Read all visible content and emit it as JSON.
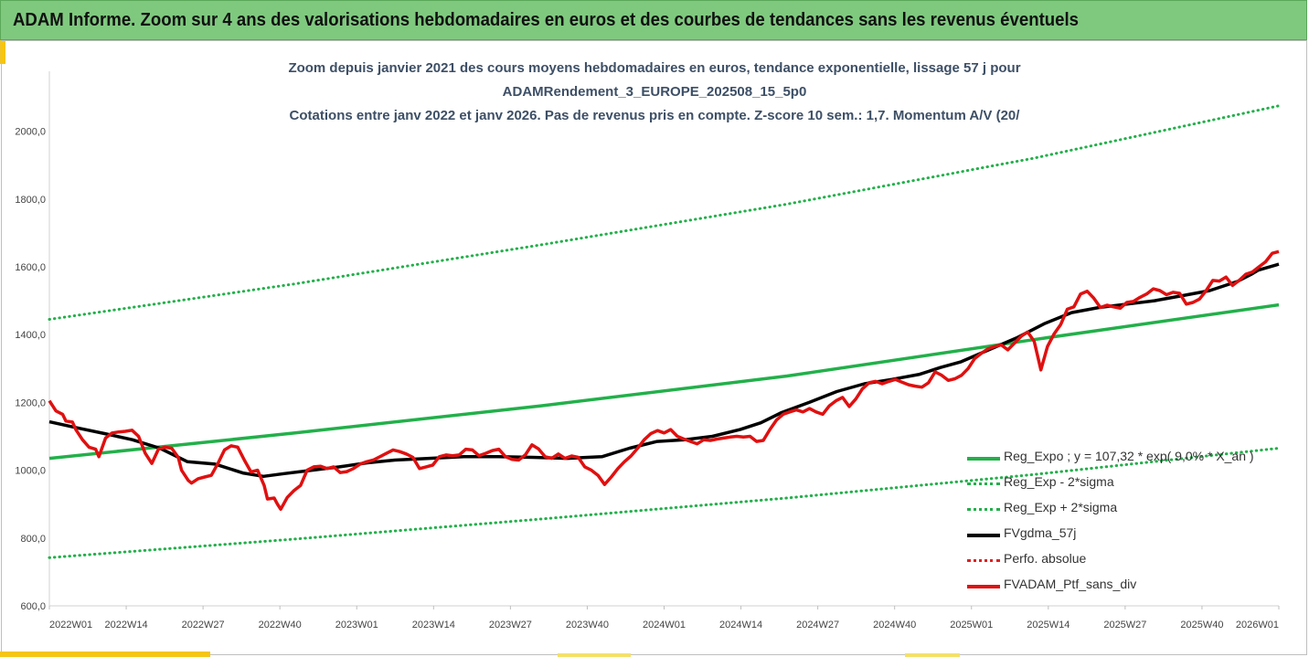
{
  "banner": {
    "title": "ADAM Informe. Zoom sur 4 ans des valorisations hebdomadaires en euros et des courbes de tendances sans les revenus éventuels",
    "color": "#7fc97f"
  },
  "chart_data": {
    "type": "line",
    "title_lines": [
      "Zoom depuis janvier 2021 des cours moyens hebdomadaires  en euros, tendance exponentielle, lissage 57 j pour",
      "ADAMRendement_3_EUROPE_202508_15_5p0",
      "Cotations entre janv 2022 et janv 2026. Pas de revenus pris en compte. Z-score 10 sem.: 1,7. Momentum A/V (20/"
    ],
    "x_ticks": [
      "2022W01",
      "2022W14",
      "2022W27",
      "2022W40",
      "2023W01",
      "2023W14",
      "2023W27",
      "2023W40",
      "2024W01",
      "2024W14",
      "2024W27",
      "2024W40",
      "2025W01",
      "2025W14",
      "2025W27",
      "2025W40",
      "2026W01"
    ],
    "y_ticks": [
      "600,0",
      "800,0",
      "1000,0",
      "1200,0",
      "1400,0",
      "1600,0",
      "1800,0",
      "2000,0"
    ],
    "ylim": [
      600,
      2150
    ],
    "grid": false,
    "legend_position": "bottom-right",
    "series": [
      {
        "name": "Reg_Expo ; y = 107,32 * exp( 9,0% *  X_an )",
        "color": "#22b04a",
        "style": "solid",
        "points": [
          [
            0,
            1035
          ],
          [
            52,
            1110
          ],
          [
            104,
            1190
          ],
          [
            156,
            1278
          ],
          [
            208,
            1385
          ],
          [
            260,
            1488
          ]
        ]
      },
      {
        "name": "Reg_Exp - 2*sigma",
        "color": "#22b04a",
        "style": "dotted",
        "points": [
          [
            0,
            742
          ],
          [
            52,
            797
          ],
          [
            104,
            856
          ],
          [
            156,
            918
          ],
          [
            208,
            987
          ],
          [
            260,
            1065
          ]
        ]
      },
      {
        "name": "Reg_Exp + 2*sigma",
        "color": "#22b04a",
        "style": "dotted",
        "points": [
          [
            0,
            1445
          ],
          [
            52,
            1550
          ],
          [
            104,
            1665
          ],
          [
            156,
            1785
          ],
          [
            208,
            1920
          ],
          [
            260,
            2075
          ]
        ]
      },
      {
        "name": "FVgdma_57j",
        "color": "#000000",
        "style": "solid",
        "points": [
          [
            0,
            1143
          ],
          [
            8,
            1125
          ],
          [
            16,
            1108
          ],
          [
            24,
            1090
          ],
          [
            32,
            1065
          ],
          [
            40,
            1025
          ],
          [
            48,
            1018
          ],
          [
            56,
            992
          ],
          [
            62,
            982
          ],
          [
            68,
            990
          ],
          [
            76,
            1000
          ],
          [
            84,
            1010
          ],
          [
            92,
            1022
          ],
          [
            100,
            1030
          ],
          [
            110,
            1035
          ],
          [
            120,
            1040
          ],
          [
            130,
            1040
          ],
          [
            140,
            1038
          ],
          [
            150,
            1035
          ],
          [
            160,
            1040
          ],
          [
            168,
            1065
          ],
          [
            176,
            1085
          ],
          [
            184,
            1090
          ],
          [
            192,
            1100
          ],
          [
            200,
            1120
          ],
          [
            206,
            1140
          ],
          [
            212,
            1170
          ],
          [
            220,
            1200
          ],
          [
            228,
            1232
          ],
          [
            236,
            1255
          ],
          [
            244,
            1268
          ],
          [
            252,
            1283
          ],
          [
            258,
            1303
          ],
          [
            264,
            1320
          ],
          [
            272,
            1355
          ],
          [
            280,
            1390
          ],
          [
            288,
            1432
          ],
          [
            296,
            1465
          ],
          [
            304,
            1480
          ],
          [
            312,
            1490
          ],
          [
            320,
            1500
          ],
          [
            328,
            1515
          ],
          [
            336,
            1530
          ],
          [
            344,
            1557
          ],
          [
            348,
            1578
          ],
          [
            350,
            1590
          ],
          [
            356,
            1608
          ]
        ]
      },
      {
        "name": "Perfo. absolue",
        "color": "#e02020",
        "style": "dotted",
        "points": []
      },
      {
        "name": "FVADAM_Ptf_sans_div",
        "color": "#e01010",
        "style": "solid",
        "points": [
          [
            0,
            1205
          ],
          [
            2,
            1175
          ],
          [
            4,
            1165
          ],
          [
            5,
            1145
          ],
          [
            7,
            1142
          ],
          [
            8,
            1120
          ],
          [
            10,
            1090
          ],
          [
            12,
            1068
          ],
          [
            14,
            1062
          ],
          [
            15,
            1040
          ],
          [
            17,
            1095
          ],
          [
            19,
            1110
          ],
          [
            21,
            1113
          ],
          [
            23,
            1115
          ],
          [
            25,
            1118
          ],
          [
            27,
            1100
          ],
          [
            29,
            1050
          ],
          [
            31,
            1020
          ],
          [
            33,
            1062
          ],
          [
            35,
            1068
          ],
          [
            37,
            1065
          ],
          [
            39,
            1038
          ],
          [
            40,
            1000
          ],
          [
            42,
            970
          ],
          [
            43,
            962
          ],
          [
            45,
            975
          ],
          [
            47,
            980
          ],
          [
            49,
            985
          ],
          [
            51,
            1020
          ],
          [
            53,
            1060
          ],
          [
            55,
            1072
          ],
          [
            57,
            1068
          ],
          [
            59,
            1030
          ],
          [
            61,
            995
          ],
          [
            63,
            1000
          ],
          [
            65,
            955
          ],
          [
            66,
            915
          ],
          [
            68,
            918
          ],
          [
            69,
            900
          ],
          [
            70,
            885
          ],
          [
            72,
            920
          ],
          [
            74,
            940
          ],
          [
            76,
            955
          ],
          [
            78,
            1000
          ],
          [
            80,
            1010
          ],
          [
            82,
            1012
          ],
          [
            84,
            1005
          ],
          [
            86,
            1010
          ],
          [
            88,
            993
          ],
          [
            90,
            996
          ],
          [
            92,
            1005
          ],
          [
            94,
            1018
          ],
          [
            96,
            1025
          ],
          [
            98,
            1030
          ],
          [
            100,
            1040
          ],
          [
            102,
            1050
          ],
          [
            104,
            1060
          ],
          [
            106,
            1055
          ],
          [
            108,
            1048
          ],
          [
            110,
            1038
          ],
          [
            112,
            1005
          ],
          [
            114,
            1010
          ],
          [
            116,
            1015
          ],
          [
            118,
            1040
          ],
          [
            120,
            1045
          ],
          [
            122,
            1043
          ],
          [
            124,
            1045
          ],
          [
            126,
            1062
          ],
          [
            128,
            1060
          ],
          [
            130,
            1043
          ],
          [
            132,
            1050
          ],
          [
            134,
            1058
          ],
          [
            136,
            1062
          ],
          [
            138,
            1040
          ],
          [
            140,
            1032
          ],
          [
            142,
            1030
          ],
          [
            144,
            1045
          ],
          [
            146,
            1075
          ],
          [
            148,
            1063
          ],
          [
            150,
            1040
          ],
          [
            152,
            1035
          ],
          [
            154,
            1048
          ],
          [
            156,
            1035
          ],
          [
            158,
            1042
          ],
          [
            160,
            1038
          ],
          [
            162,
            1010
          ],
          [
            164,
            1000
          ],
          [
            166,
            985
          ],
          [
            168,
            958
          ],
          [
            170,
            980
          ],
          [
            172,
            1005
          ],
          [
            174,
            1025
          ],
          [
            176,
            1042
          ],
          [
            178,
            1065
          ],
          [
            180,
            1090
          ],
          [
            182,
            1108
          ],
          [
            184,
            1117
          ],
          [
            186,
            1110
          ],
          [
            188,
            1120
          ],
          [
            190,
            1100
          ],
          [
            192,
            1092
          ],
          [
            194,
            1085
          ],
          [
            196,
            1078
          ],
          [
            198,
            1090
          ],
          [
            200,
            1088
          ],
          [
            202,
            1092
          ],
          [
            204,
            1095
          ],
          [
            206,
            1098
          ],
          [
            208,
            1100
          ],
          [
            210,
            1098
          ],
          [
            212,
            1100
          ],
          [
            214,
            1085
          ],
          [
            216,
            1088
          ],
          [
            218,
            1120
          ],
          [
            220,
            1148
          ],
          [
            222,
            1165
          ],
          [
            224,
            1172
          ],
          [
            226,
            1178
          ],
          [
            228,
            1172
          ],
          [
            230,
            1182
          ],
          [
            232,
            1172
          ],
          [
            234,
            1165
          ],
          [
            236,
            1190
          ],
          [
            238,
            1205
          ],
          [
            240,
            1215
          ],
          [
            242,
            1188
          ],
          [
            244,
            1210
          ],
          [
            246,
            1240
          ],
          [
            248,
            1258
          ],
          [
            250,
            1262
          ],
          [
            252,
            1255
          ],
          [
            254,
            1262
          ],
          [
            256,
            1268
          ],
          [
            258,
            1260
          ],
          [
            260,
            1252
          ],
          [
            262,
            1248
          ],
          [
            264,
            1245
          ],
          [
            266,
            1258
          ],
          [
            268,
            1290
          ],
          [
            270,
            1280
          ],
          [
            272,
            1265
          ],
          [
            274,
            1270
          ],
          [
            276,
            1280
          ],
          [
            278,
            1300
          ],
          [
            280,
            1330
          ],
          [
            282,
            1345
          ],
          [
            284,
            1358
          ],
          [
            286,
            1365
          ],
          [
            288,
            1370
          ],
          [
            290,
            1355
          ],
          [
            292,
            1375
          ],
          [
            294,
            1395
          ],
          [
            296,
            1408
          ],
          [
            298,
            1380
          ],
          [
            300,
            1296
          ],
          [
            302,
            1365
          ],
          [
            304,
            1402
          ],
          [
            306,
            1430
          ],
          [
            308,
            1475
          ],
          [
            310,
            1482
          ],
          [
            312,
            1520
          ],
          [
            314,
            1528
          ],
          [
            316,
            1508
          ],
          [
            318,
            1480
          ],
          [
            320,
            1487
          ],
          [
            322,
            1482
          ],
          [
            324,
            1478
          ],
          [
            326,
            1495
          ],
          [
            328,
            1498
          ],
          [
            330,
            1510
          ],
          [
            332,
            1520
          ],
          [
            334,
            1535
          ],
          [
            336,
            1530
          ],
          [
            338,
            1518
          ],
          [
            340,
            1525
          ],
          [
            342,
            1522
          ],
          [
            344,
            1490
          ],
          [
            346,
            1495
          ],
          [
            348,
            1505
          ],
          [
            350,
            1530
          ],
          [
            352,
            1560
          ],
          [
            354,
            1558
          ],
          [
            356,
            1570
          ],
          [
            358,
            1545
          ],
          [
            360,
            1560
          ],
          [
            362,
            1578
          ],
          [
            364,
            1585
          ],
          [
            366,
            1600
          ],
          [
            368,
            1615
          ],
          [
            370,
            1640
          ],
          [
            372,
            1645
          ]
        ]
      }
    ]
  }
}
